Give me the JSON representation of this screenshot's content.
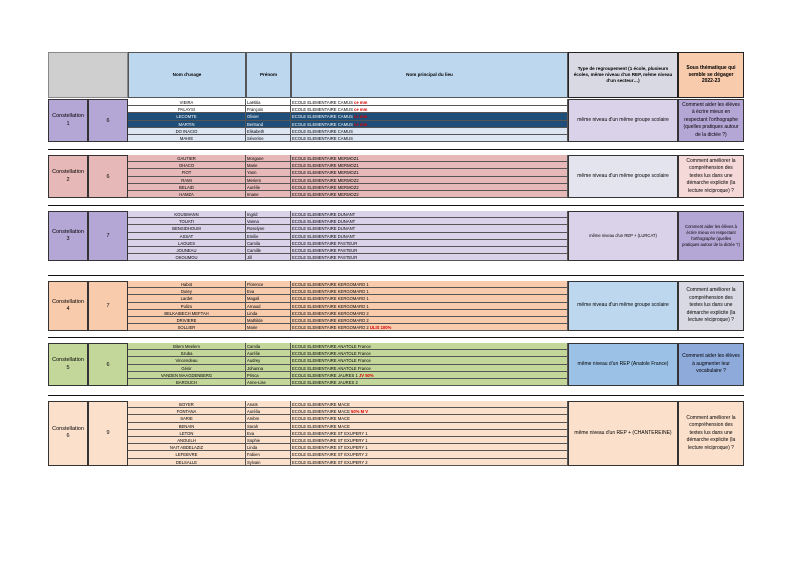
{
  "header": {
    "nom_usage": "Nom d'usage",
    "prenom": "Prénom",
    "ecole": "Nom principal du lieu",
    "type": "Type de regroupement (1 école, plusieurs écoles, même niveau d'un REP, même niveau d'un secteur…)",
    "theme": "Sous thématique qui semble se dégager 2022-23"
  },
  "groups": [
    {
      "constellation": "Constellation 1",
      "count": "6",
      "type": "même niveau d'un même groupe scolaire",
      "theme": "Comment aider les élèves à écrire mieux en respectant l'orthographe (quelles pratiques autour de la dictée ?)",
      "rows": [
        {
          "nom": "VIEIRA",
          "prenom": "Laëtitia",
          "ecole": "ECOLE ELEMENTAIRE CAMUS",
          "note": "ce mm"
        },
        {
          "nom": "PALAYSI",
          "prenom": "François",
          "ecole": "ECOLE ELEMENTAIRE CAMUS",
          "note": "ce mm"
        },
        {
          "nom": "LECOMTE",
          "prenom": "Olivier",
          "ecole": "ECOLE ELEMENTAIRE CAMUS",
          "note": "ce mm"
        },
        {
          "nom": "MARTIN",
          "prenom": "Bertrand",
          "ecole": "ECOLE ELEMENTAIRE CAMUS",
          "note": "ce mm"
        },
        {
          "nom": "DO INACIO",
          "prenom": "Elisabeth",
          "ecole": "ECOLE ELEMENTAIRE CAMUS",
          "note": ""
        },
        {
          "nom": "MAHIE",
          "prenom": "Séverine",
          "ecole": "ECOLE ELEMENTAIRE CAMUS",
          "note": ""
        }
      ]
    },
    {
      "constellation": "Constellation 2",
      "count": "6",
      "type": "même niveau d'un même groupe scolaire",
      "theme": "Comment améliorer la compréhension des textes lus dans une démarche explicite (la lecture réciproque) ?",
      "rows": [
        {
          "nom": "GAUTIER",
          "prenom": "Morgane",
          "ecole": "ECOLE ELEMENTAIRE MERMOZ1",
          "note": ""
        },
        {
          "nom": "OHACO",
          "prenom": "Marie",
          "ecole": "ECOLE ELEMENTAIRE MERMOZ1",
          "note": ""
        },
        {
          "nom": "FIOT",
          "prenom": "Yann",
          "ecole": "ECOLE ELEMENTAIRE MERMOZ1",
          "note": ""
        },
        {
          "nom": "RAMI",
          "prenom": "Meriem",
          "ecole": "ECOLE ELEMENTAIRE MERMOZ2",
          "note": ""
        },
        {
          "nom": "BELAID",
          "prenom": "Aurélie",
          "ecole": "ECOLE ELEMENTAIRE MERMOZ2",
          "note": ""
        },
        {
          "nom": "HAMZA",
          "prenom": "Imane",
          "ecole": "ECOLE ELEMENTAIRE MERMOZ2",
          "note": ""
        }
      ]
    },
    {
      "constellation": "Constellation 3",
      "count": "7",
      "type": "même niveau d'un REP + (LURCAT)",
      "theme": "Comment aider les élèves à écrire mieux en respectant l'orthographe (quelles pratiques autour de la dictée ?)",
      "rows": [
        {
          "nom": "KOUSMANN",
          "prenom": "Ingrid",
          "ecole": "ECOLE ELEMENTAIRE DUNANT",
          "note": ""
        },
        {
          "nom": "TOUATI",
          "prenom": "Vanna",
          "ecole": "ECOLE ELEMENTAIRE DUNANT",
          "note": ""
        },
        {
          "nom": "BENSIDHOUM",
          "prenom": "Roselyne",
          "ecole": "ECOLE ELEMENTAIRE DUNANT",
          "note": ""
        },
        {
          "nom": "ASSAT",
          "prenom": "Emilie",
          "ecole": "ECOLE ELEMENTAIRE DUNANT",
          "note": ""
        },
        {
          "nom": "LAOUES",
          "prenom": "Camila",
          "ecole": "ECOLE ELEMENTAIRE PASTEUR",
          "note": ""
        },
        {
          "nom": "JOUNEAU",
          "prenom": "Camille",
          "ecole": "ECOLE ELEMENTAIRE PASTEUR",
          "note": ""
        },
        {
          "nom": "OKOUMOU",
          "prenom": "Jill",
          "ecole": "ECOLE ELEMENTAIRE PASTEUR",
          "note": ""
        }
      ]
    },
    {
      "constellation": "Constellation 4",
      "count": "7",
      "type": "même niveau d'un même groupe scolaire",
      "theme": "Comment améliorer la compréhension des textes lus dans une démarche explicite (la lecture réciproque) ?",
      "rows": [
        {
          "nom": "Habot",
          "prenom": "Florence",
          "ecole": "ECOLE ELEMENTAIRE KERGOMARD 1",
          "note": ""
        },
        {
          "nom": "Dutey",
          "prenom": "Eva",
          "ecole": "ECOLE ELEMENTAIRE KERGOMARD 1",
          "note": ""
        },
        {
          "nom": "Lardet",
          "prenom": "Magali",
          "ecole": "ECOLE ELEMENTAIRE KERGOMARD 1",
          "note": ""
        },
        {
          "nom": "Pulizo",
          "prenom": "Arnaud",
          "ecole": "ECOLE ELEMENTAIRE KERGOMARD 1",
          "note": ""
        },
        {
          "nom": "BELKAIBECH MEFTAH",
          "prenom": "Linda",
          "ecole": "ECOLE ELEMENTAIRE KERGOMARD 2",
          "note": ""
        },
        {
          "nom": "DRIVIERE",
          "prenom": "Mathilde",
          "ecole": "ECOLE ELEMENTAIRE KERGOMARD 2",
          "note": ""
        },
        {
          "nom": "SOLLIER",
          "prenom": "Marie",
          "ecole": "ECOLE ELEMENTAIRE KERGOMARD 2",
          "note": "ULIS 100%"
        }
      ]
    },
    {
      "constellation": "Constellation 5",
      "count": "6",
      "type": "même niveau d'un REP (Anatole France)",
      "theme": "Comment aider les élèves à augmenter leur vocabulaire ?",
      "rows": [
        {
          "nom": "Bitem Meelem",
          "prenom": "Camila",
          "ecole": "ECOLE ELEMENTAIRE ANATOLE France",
          "note": ""
        },
        {
          "nom": "Szuba",
          "prenom": "Aurélie",
          "ecole": "ECOLE ELEMENTAIRE ANATOLE France",
          "note": ""
        },
        {
          "nom": "Vincendeau",
          "prenom": "Audrey",
          "ecole": "ECOLE ELEMENTAIRE ANATOLE France",
          "note": ""
        },
        {
          "nom": "Génir",
          "prenom": "Johanna",
          "ecole": "ECOLE ELEMENTAIRE ANATOLE France",
          "note": ""
        },
        {
          "nom": "VANDEN MAAGDENBERG",
          "prenom": "Prisca",
          "ecole": "ECOLE ELEMENTAIRE JAURES 1",
          "note": "JV 50%"
        },
        {
          "nom": "BAROUCH",
          "prenom": "Anne-Lise",
          "ecole": "ECOLE ELEMENTAIRE JAURES 2",
          "note": ""
        }
      ]
    },
    {
      "constellation": "Constellation 6",
      "count": "9",
      "type": "même niveau d'un REP + (CHANTEREINE)",
      "theme": "Comment améliorer la compréhension des textes lus dans une démarche explicite (la lecture réciproque) ?",
      "rows": [
        {
          "nom": "BOYER",
          "prenom": "Anaïs",
          "ecole": "ECOLE ELEMENTAIRE MACE",
          "note": ""
        },
        {
          "nom": "FONTANA",
          "prenom": "Aurélia",
          "ecole": "ECOLE ELEMENTAIRE MACE",
          "note": "50% M V"
        },
        {
          "nom": "SARIE",
          "prenom": "Ambre",
          "ecole": "ECOLE ELEMENTAIRE MACE",
          "note": ""
        },
        {
          "nom": "BENAIN",
          "prenom": "Sarah",
          "ecole": "ECOLE ELEMENTAIRE MACE",
          "note": ""
        },
        {
          "nom": "LETON",
          "prenom": "Eva",
          "ecole": "ECOLE ELEMENTAIRE ST EXUPERY 1",
          "note": ""
        },
        {
          "nom": "ANOUILH",
          "prenom": "Sophie",
          "ecole": "ECOLE ELEMENTAIRE ST EXUPERY 1",
          "note": ""
        },
        {
          "nom": "NAIT ABDELAZIZ",
          "prenom": "Linda",
          "ecole": "ECOLE ELEMENTAIRE ST EXUPERY 1",
          "note": ""
        },
        {
          "nom": "LEFEBVRE",
          "prenom": "Fabien",
          "ecole": "ECOLE ELEMENTAIRE ST EXUPERY 2",
          "note": ""
        },
        {
          "nom": "DELSALLE",
          "prenom": "Sylvain",
          "ecole": "ECOLE ELEMENTAIRE ST EXUPERY 2",
          "note": ""
        }
      ]
    }
  ],
  "colors": {
    "header_gray": "#cfcfcf",
    "header_blue": "#bdd7ee",
    "header_lav": "#d9d9e3",
    "header_peach": "#f8cbad"
  }
}
